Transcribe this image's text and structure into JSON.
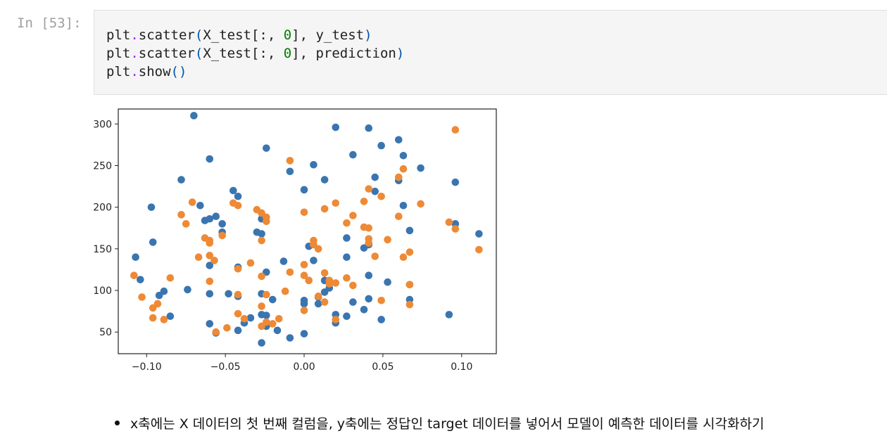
{
  "cell": {
    "prompt": "In [53]:",
    "lines": [
      [
        {
          "t": "plt"
        },
        {
          "t": ".",
          "c": "op"
        },
        {
          "t": "scatter"
        },
        {
          "t": "(",
          "c": "pn"
        },
        {
          "t": "X_test[:, "
        },
        {
          "t": "0",
          "c": "num"
        },
        {
          "t": "], y_test"
        },
        {
          "t": ")",
          "c": "pn"
        }
      ],
      [
        {
          "t": "plt"
        },
        {
          "t": ".",
          "c": "op"
        },
        {
          "t": "scatter"
        },
        {
          "t": "(",
          "c": "pn"
        },
        {
          "t": "X_test[:, "
        },
        {
          "t": "0",
          "c": "num"
        },
        {
          "t": "], prediction"
        },
        {
          "t": ")",
          "c": "pn"
        }
      ],
      [
        {
          "t": "plt"
        },
        {
          "t": ".",
          "c": "op"
        },
        {
          "t": "show"
        },
        {
          "t": "()",
          "c": "pn"
        }
      ]
    ]
  },
  "note": {
    "text": "x축에는 X 데이터의 첫 번째 컬럼을, y축에는 정답인 target 데이터를 넣어서 모델이 예측한 데이터를 시각화하기"
  },
  "chart_data": {
    "type": "scatter",
    "xlim": [
      -0.118,
      0.122
    ],
    "ylim": [
      24,
      318
    ],
    "xticks": [
      -0.1,
      -0.05,
      0.0,
      0.05,
      0.1
    ],
    "xtick_labels": [
      "−0.10",
      "−0.05",
      "0.00",
      "0.05",
      "0.10"
    ],
    "yticks": [
      50,
      100,
      150,
      200,
      250,
      300
    ],
    "ytick_labels": [
      "50",
      "100",
      "150",
      "200",
      "250",
      "300"
    ],
    "grid": false,
    "series": [
      {
        "color": "#3a75b0",
        "points": [
          [
            -0.107,
            140
          ],
          [
            -0.104,
            113
          ],
          [
            -0.097,
            200
          ],
          [
            -0.096,
            158
          ],
          [
            -0.092,
            94
          ],
          [
            -0.089,
            99
          ],
          [
            -0.085,
            69
          ],
          [
            -0.078,
            233
          ],
          [
            -0.074,
            101
          ],
          [
            -0.07,
            310
          ],
          [
            -0.066,
            202
          ],
          [
            -0.063,
            184
          ],
          [
            -0.06,
            258
          ],
          [
            -0.06,
            186
          ],
          [
            -0.06,
            130
          ],
          [
            -0.06,
            96
          ],
          [
            -0.06,
            60
          ],
          [
            -0.056,
            189
          ],
          [
            -0.056,
            49
          ],
          [
            -0.052,
            180
          ],
          [
            -0.052,
            170
          ],
          [
            -0.048,
            96
          ],
          [
            -0.045,
            220
          ],
          [
            -0.042,
            213
          ],
          [
            -0.042,
            128
          ],
          [
            -0.042,
            93
          ],
          [
            -0.042,
            52
          ],
          [
            -0.038,
            61
          ],
          [
            -0.034,
            67
          ],
          [
            -0.03,
            170
          ],
          [
            -0.027,
            168
          ],
          [
            -0.027,
            186
          ],
          [
            -0.027,
            37
          ],
          [
            -0.027,
            71
          ],
          [
            -0.027,
            96
          ],
          [
            -0.024,
            271
          ],
          [
            -0.024,
            122
          ],
          [
            -0.024,
            70
          ],
          [
            -0.024,
            57
          ],
          [
            -0.02,
            89
          ],
          [
            -0.017,
            52
          ],
          [
            -0.013,
            135
          ],
          [
            -0.009,
            243
          ],
          [
            -0.009,
            43
          ],
          [
            0.0,
            221
          ],
          [
            0.0,
            88
          ],
          [
            0.0,
            84
          ],
          [
            0.0,
            48
          ],
          [
            0.003,
            153
          ],
          [
            0.006,
            251
          ],
          [
            0.006,
            136
          ],
          [
            0.009,
            84
          ],
          [
            0.009,
            92
          ],
          [
            0.013,
            233
          ],
          [
            0.013,
            112
          ],
          [
            0.013,
            98
          ],
          [
            0.016,
            103
          ],
          [
            0.02,
            296
          ],
          [
            0.02,
            71
          ],
          [
            0.02,
            61
          ],
          [
            0.027,
            140
          ],
          [
            0.027,
            163
          ],
          [
            0.027,
            69
          ],
          [
            0.031,
            263
          ],
          [
            0.031,
            86
          ],
          [
            0.038,
            151
          ],
          [
            0.038,
            77
          ],
          [
            0.041,
            295
          ],
          [
            0.041,
            155
          ],
          [
            0.041,
            118
          ],
          [
            0.041,
            90
          ],
          [
            0.045,
            236
          ],
          [
            0.045,
            219
          ],
          [
            0.049,
            274
          ],
          [
            0.049,
            65
          ],
          [
            0.053,
            110
          ],
          [
            0.06,
            281
          ],
          [
            0.06,
            232
          ],
          [
            0.063,
            262
          ],
          [
            0.063,
            202
          ],
          [
            0.067,
            172
          ],
          [
            0.067,
            107
          ],
          [
            0.067,
            89
          ],
          [
            0.074,
            247
          ],
          [
            0.092,
            71
          ],
          [
            0.096,
            230
          ],
          [
            0.096,
            180
          ],
          [
            0.111,
            168
          ]
        ]
      },
      {
        "color": "#ee8a35",
        "points": [
          [
            -0.108,
            118
          ],
          [
            -0.103,
            92
          ],
          [
            -0.096,
            79
          ],
          [
            -0.096,
            67
          ],
          [
            -0.093,
            84
          ],
          [
            -0.089,
            65
          ],
          [
            -0.085,
            115
          ],
          [
            -0.078,
            191
          ],
          [
            -0.075,
            180
          ],
          [
            -0.071,
            206
          ],
          [
            -0.067,
            140
          ],
          [
            -0.063,
            163
          ],
          [
            -0.06,
            157
          ],
          [
            -0.06,
            142
          ],
          [
            -0.06,
            111
          ],
          [
            -0.06,
            160
          ],
          [
            -0.057,
            136
          ],
          [
            -0.056,
            50
          ],
          [
            -0.052,
            166
          ],
          [
            -0.049,
            55
          ],
          [
            -0.045,
            205
          ],
          [
            -0.042,
            202
          ],
          [
            -0.042,
            126
          ],
          [
            -0.042,
            95
          ],
          [
            -0.042,
            72
          ],
          [
            -0.038,
            66
          ],
          [
            -0.034,
            133
          ],
          [
            -0.03,
            197
          ],
          [
            -0.027,
            193
          ],
          [
            -0.027,
            160
          ],
          [
            -0.027,
            117
          ],
          [
            -0.027,
            81
          ],
          [
            -0.027,
            57
          ],
          [
            -0.024,
            188
          ],
          [
            -0.024,
            183
          ],
          [
            -0.024,
            95
          ],
          [
            -0.024,
            62
          ],
          [
            -0.02,
            60
          ],
          [
            -0.016,
            66
          ],
          [
            -0.012,
            99
          ],
          [
            -0.009,
            122
          ],
          [
            -0.009,
            256
          ],
          [
            0.0,
            194
          ],
          [
            0.0,
            131
          ],
          [
            0.0,
            118
          ],
          [
            0.0,
            76
          ],
          [
            0.003,
            112
          ],
          [
            0.006,
            160
          ],
          [
            0.006,
            155
          ],
          [
            0.009,
            150
          ],
          [
            0.009,
            93
          ],
          [
            0.013,
            198
          ],
          [
            0.013,
            121
          ],
          [
            0.013,
            86
          ],
          [
            0.016,
            112
          ],
          [
            0.016,
            108
          ],
          [
            0.02,
            205
          ],
          [
            0.02,
            109
          ],
          [
            0.02,
            65
          ],
          [
            0.027,
            181
          ],
          [
            0.027,
            115
          ],
          [
            0.031,
            190
          ],
          [
            0.031,
            106
          ],
          [
            0.038,
            207
          ],
          [
            0.038,
            176
          ],
          [
            0.041,
            222
          ],
          [
            0.041,
            175
          ],
          [
            0.041,
            162
          ],
          [
            0.041,
            157
          ],
          [
            0.045,
            141
          ],
          [
            0.049,
            213
          ],
          [
            0.049,
            88
          ],
          [
            0.053,
            161
          ],
          [
            0.06,
            236
          ],
          [
            0.06,
            189
          ],
          [
            0.063,
            246
          ],
          [
            0.063,
            140
          ],
          [
            0.067,
            146
          ],
          [
            0.067,
            107
          ],
          [
            0.067,
            83
          ],
          [
            0.074,
            204
          ],
          [
            0.092,
            182
          ],
          [
            0.096,
            293
          ],
          [
            0.096,
            174
          ],
          [
            0.111,
            149
          ]
        ]
      }
    ]
  }
}
